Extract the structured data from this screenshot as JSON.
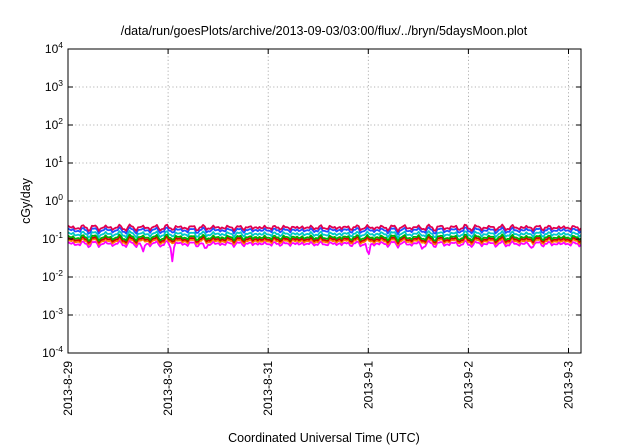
{
  "chart_data": {
    "type": "line",
    "title": "/data/run/goesPlots/archive/2013-09-03/03:00/flux/../bryn/5daysMoon.plot",
    "xlabel": "Coordinated Universal Time (UTC)",
    "ylabel": "cGy/day",
    "yscale": "log",
    "ylim": [
      0.0001,
      10000
    ],
    "xlim": [
      "2013-08-29T00:00",
      "2013-09-03T03:00"
    ],
    "grid": true,
    "x_ticks": [
      "2013-8-29",
      "2013-8-30",
      "2013-8-31",
      "2013-9-1",
      "2013-9-2",
      "2013-9-3"
    ],
    "y_ticks": [
      {
        "value": 0.0001,
        "base": "10",
        "exp": "-4"
      },
      {
        "value": 0.001,
        "base": "10",
        "exp": "-3"
      },
      {
        "value": 0.01,
        "base": "10",
        "exp": "-2"
      },
      {
        "value": 0.1,
        "base": "10",
        "exp": "-1"
      },
      {
        "value": 1,
        "base": "10",
        "exp": "0"
      },
      {
        "value": 10,
        "base": "10",
        "exp": "1"
      },
      {
        "value": 100,
        "base": "10",
        "exp": "2"
      },
      {
        "value": 1000,
        "base": "10",
        "exp": "3"
      },
      {
        "value": 10000,
        "base": "10",
        "exp": "4"
      }
    ],
    "series": [
      {
        "color": "#ff00ff",
        "level": 0.075,
        "spikes": [
          {
            "x": "2013-08-29T18:00",
            "y": 0.045
          },
          {
            "x": "2013-08-30T01:00",
            "y": 0.025
          },
          {
            "x": "2013-08-30T09:00",
            "y": 0.05
          },
          {
            "x": "2013-09-01T00:00",
            "y": 0.028
          },
          {
            "x": "2013-09-01T13:00",
            "y": 0.05
          },
          {
            "x": "2013-09-02T15:00",
            "y": 0.055
          }
        ]
      },
      {
        "color": "#ff8000",
        "level": 0.088,
        "spikes": []
      },
      {
        "color": "#d40000",
        "level": 0.098,
        "spikes": []
      },
      {
        "color": "#00b000",
        "level": 0.11,
        "spikes": []
      },
      {
        "color": "#00c8c8",
        "level": 0.135,
        "spikes": []
      },
      {
        "color": "#1e50ff",
        "level": 0.17,
        "spikes": []
      },
      {
        "color": "#e00050",
        "level": 0.2,
        "spikes": []
      }
    ]
  }
}
